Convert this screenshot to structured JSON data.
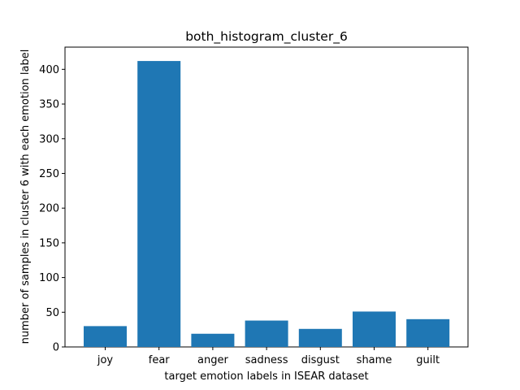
{
  "chart_data": {
    "type": "bar",
    "title": "both_histogram_cluster_6",
    "xlabel": "target emotion labels in ISEAR dataset",
    "ylabel": "number of samples in cluster 6 with each emotion label",
    "categories": [
      "joy",
      "fear",
      "anger",
      "sadness",
      "disgust",
      "shame",
      "guilt"
    ],
    "values": [
      30,
      412,
      19,
      38,
      26,
      51,
      40
    ],
    "ylim": [
      0,
      432
    ],
    "yticks": [
      0,
      50,
      100,
      150,
      200,
      250,
      300,
      350,
      400
    ],
    "grid": false,
    "bar_color": "#1f77b4"
  }
}
